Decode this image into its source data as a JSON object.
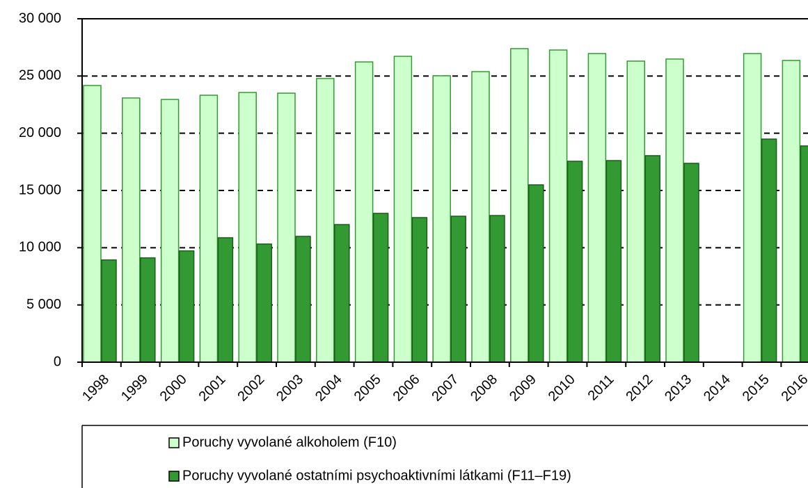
{
  "chart_data": {
    "type": "bar",
    "categories": [
      "1998",
      "1999",
      "2000",
      "2001",
      "2002",
      "2003",
      "2004",
      "2005",
      "2006",
      "2007",
      "2008",
      "2009",
      "2010",
      "2011",
      "2012",
      "2013",
      "2014",
      "2015",
      "2016"
    ],
    "series": [
      {
        "name": "Poruchy vyvolané alkoholem (F10)",
        "color": "#ccffcc",
        "edge": "#339933",
        "values": [
          24170,
          23080,
          22950,
          23320,
          23560,
          23500,
          24780,
          26230,
          26720,
          25020,
          25380,
          27390,
          27270,
          26960,
          26300,
          26480,
          null,
          26960,
          26360
        ]
      },
      {
        "name": "Poruchy vyvolané ostatními psychoaktivními látkami (F11–F19)",
        "color": "#339933",
        "edge": "#1a5c1a",
        "values": [
          8930,
          9110,
          9720,
          10870,
          10320,
          10990,
          12020,
          13000,
          12630,
          12750,
          12810,
          15490,
          17550,
          17610,
          18040,
          17370,
          null,
          19490,
          18890
        ]
      }
    ],
    "ylim": [
      0,
      30000
    ],
    "yticks": [
      {
        "value": 0,
        "label": "0"
      },
      {
        "value": 5000,
        "label": "5 000"
      },
      {
        "value": 10000,
        "label": "10 000"
      },
      {
        "value": 15000,
        "label": "15 000"
      },
      {
        "value": 20000,
        "label": "20 000"
      },
      {
        "value": 25000,
        "label": "25 000"
      },
      {
        "value": 30000,
        "label": "30 000"
      }
    ],
    "grid": true
  }
}
